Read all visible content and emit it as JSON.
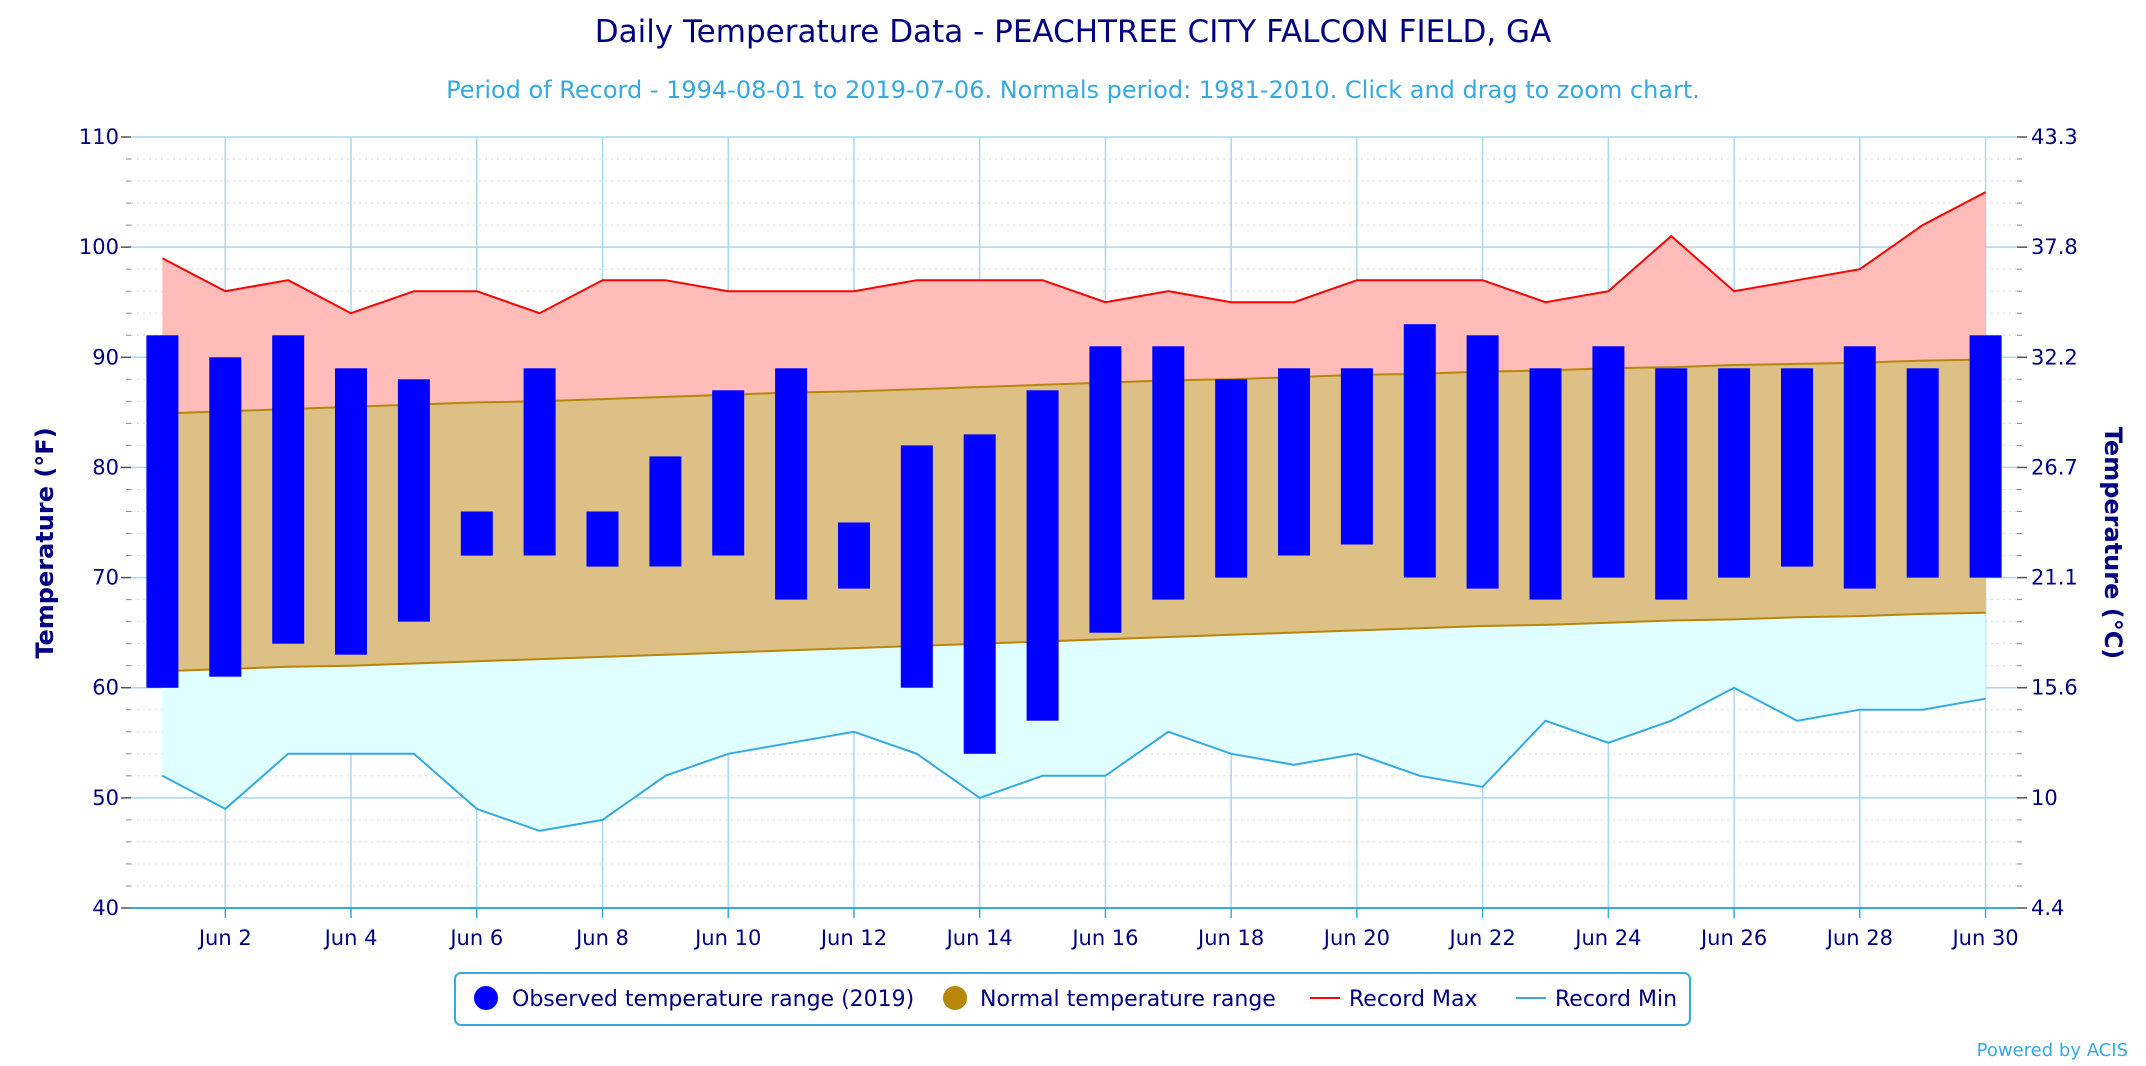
{
  "chart_data": {
    "type": "bar",
    "title": "Daily Temperature Data - PEACHTREE CITY FALCON FIELD, GA",
    "subtitle": "Period of Record - 1994-08-01 to 2019-07-06. Normals period: 1981-2010. Click and drag to zoom chart.",
    "ylabel": "Temperature (°F)",
    "ylabel_right": "Temperature (°C)",
    "ylim": [
      40,
      110
    ],
    "xlim": [
      0.5,
      30.5
    ],
    "y_ticks": [
      "110",
      "100",
      "90",
      "80",
      "70",
      "60",
      "50",
      "40"
    ],
    "y_ticks_right": [
      "43.3",
      "37.8",
      "32.2",
      "26.7",
      "21.1",
      "15.6",
      "10",
      "4.4"
    ],
    "x": [
      1,
      2,
      3,
      4,
      5,
      6,
      7,
      8,
      9,
      10,
      11,
      12,
      13,
      14,
      15,
      16,
      17,
      18,
      19,
      20,
      21,
      22,
      23,
      24,
      25,
      26,
      27,
      28,
      29,
      30
    ],
    "x_tick_labels": [
      "Jun 2",
      "Jun 4",
      "Jun 6",
      "Jun 8",
      "Jun 10",
      "Jun 12",
      "Jun 14",
      "Jun 16",
      "Jun 18",
      "Jun 20",
      "Jun 22",
      "Jun 24",
      "Jun 26",
      "Jun 28",
      "Jun 30"
    ],
    "x_tick_days": [
      2,
      4,
      6,
      8,
      10,
      12,
      14,
      16,
      18,
      20,
      22,
      24,
      26,
      28,
      30
    ],
    "grid": true,
    "legend_position": "bottom-center",
    "series": [
      {
        "name": "Observed temperature range (2019)",
        "color": "#0000ff",
        "low": [
          60,
          61,
          64,
          63,
          66,
          72,
          72,
          71,
          71,
          72,
          68,
          69,
          60,
          54,
          57,
          65,
          68,
          70,
          72,
          73,
          70,
          69,
          68,
          70,
          68,
          70,
          71,
          69,
          70,
          70
        ],
        "high": [
          92,
          90,
          92,
          89,
          88,
          76,
          89,
          76,
          81,
          87,
          89,
          75,
          82,
          83,
          87,
          91,
          91,
          88,
          89,
          89,
          93,
          92,
          89,
          91,
          89,
          89,
          89,
          91,
          89,
          92
        ]
      },
      {
        "name": "Normal temperature range",
        "color": "#b8860b",
        "low": [
          61.5,
          61.7,
          61.9,
          62.0,
          62.2,
          62.4,
          62.6,
          62.8,
          63.0,
          63.2,
          63.4,
          63.6,
          63.8,
          64.0,
          64.2,
          64.4,
          64.6,
          64.8,
          65.0,
          65.2,
          65.4,
          65.6,
          65.7,
          65.9,
          66.1,
          66.2,
          66.4,
          66.5,
          66.7,
          66.8
        ],
        "high": [
          84.9,
          85.1,
          85.3,
          85.5,
          85.7,
          85.9,
          86.0,
          86.2,
          86.4,
          86.6,
          86.8,
          86.9,
          87.1,
          87.3,
          87.5,
          87.7,
          87.9,
          88.0,
          88.2,
          88.4,
          88.5,
          88.7,
          88.8,
          89.0,
          89.1,
          89.3,
          89.4,
          89.5,
          89.7,
          89.8
        ]
      },
      {
        "name": "Record Max",
        "color": "#ff0000",
        "values": [
          99,
          96,
          97,
          94,
          96,
          96,
          94,
          97,
          97,
          96,
          96,
          96,
          97,
          97,
          97,
          95,
          96,
          95,
          95,
          97,
          97,
          97,
          95,
          96,
          101,
          96,
          97,
          98,
          102,
          105
        ]
      },
      {
        "name": "Record Min",
        "color": "#36a9e1",
        "values": [
          52,
          49,
          54,
          54,
          54,
          49,
          47,
          48,
          52,
          54,
          55,
          56,
          54,
          50,
          52,
          52,
          56,
          54,
          53,
          54,
          52,
          51,
          57,
          55,
          57,
          60,
          57,
          58,
          58,
          59
        ]
      }
    ],
    "credit": "Powered by ACIS"
  }
}
